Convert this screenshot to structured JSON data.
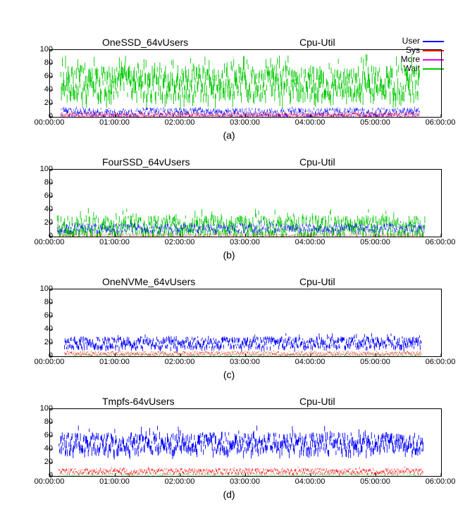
{
  "legend": {
    "items": [
      {
        "label": "User",
        "color": "#0000ff"
      },
      {
        "label": "Sys",
        "color": "#ff0000"
      },
      {
        "label": "More",
        "color": "#ee00ee"
      },
      {
        "label": "Wait",
        "color": "#00c800"
      }
    ]
  },
  "axes": {
    "ylim": [
      0,
      100
    ],
    "yticks": [
      0,
      20,
      40,
      60,
      80,
      100
    ],
    "xlim": [
      0,
      21600
    ],
    "xticks": [
      {
        "v": 0,
        "label": "00:00:00"
      },
      {
        "v": 3600,
        "label": "01:00:00"
      },
      {
        "v": 7200,
        "label": "02:00:00"
      },
      {
        "v": 10800,
        "label": "03:00:00"
      },
      {
        "v": 14400,
        "label": "04:00:00"
      },
      {
        "v": 18000,
        "label": "05:00:00"
      },
      {
        "v": 21600,
        "label": "06:00:00"
      }
    ],
    "plot_bg": "#ffffff",
    "tick_font_size": 11,
    "title_font_size": 14
  },
  "panels": [
    {
      "id": "a",
      "sublabel": "(a)",
      "title_left": "OneSSD_64vUsers",
      "title_right": "Cpu-Util",
      "xstart": 600,
      "xend": 20400,
      "series": [
        {
          "color": "#00c800",
          "base": 55,
          "amp": 30,
          "noise": 22,
          "spikes": 0.06,
          "stroke_w": 0.9,
          "alpha": 1
        },
        {
          "color": "#0000ff",
          "base": 8,
          "amp": 6,
          "noise": 6,
          "spikes": 0.02,
          "stroke_w": 0.7,
          "alpha": 0.9
        },
        {
          "color": "#ff0000",
          "base": 4,
          "amp": 3,
          "noise": 3,
          "spikes": 0.02,
          "stroke_w": 0.6,
          "alpha": 0.9
        },
        {
          "color": "#ee00ee",
          "base": 2,
          "amp": 2,
          "noise": 2,
          "spikes": 0.01,
          "stroke_w": 0.5,
          "alpha": 0.8
        }
      ]
    },
    {
      "id": "b",
      "sublabel": "(b)",
      "title_left": "FourSSD_64vUsers",
      "title_right": "Cpu-Util",
      "xstart": 400,
      "xend": 20700,
      "series": [
        {
          "color": "#00c800",
          "base": 18,
          "amp": 20,
          "noise": 14,
          "spikes": 0.05,
          "stroke_w": 0.9,
          "alpha": 1
        },
        {
          "color": "#0000ff",
          "base": 14,
          "amp": 8,
          "noise": 6,
          "spikes": 0.02,
          "stroke_w": 0.7,
          "alpha": 0.8
        },
        {
          "color": "#ff0000",
          "base": 3,
          "amp": 3,
          "noise": 2,
          "spikes": 0.01,
          "stroke_w": 0.5,
          "alpha": 0.7
        }
      ]
    },
    {
      "id": "c",
      "sublabel": "(c)",
      "title_left": "OneNVMe_64vUsers",
      "title_right": "Cpu-Util",
      "xstart": 800,
      "xend": 20500,
      "series": [
        {
          "color": "#0000ff",
          "base": 22,
          "amp": 10,
          "noise": 8,
          "spikes": 0.03,
          "stroke_w": 0.9,
          "alpha": 1
        },
        {
          "color": "#ff0000",
          "base": 5,
          "amp": 3,
          "noise": 3,
          "spikes": 0.01,
          "stroke_w": 0.6,
          "alpha": 0.9
        },
        {
          "color": "#00c800",
          "base": 2,
          "amp": 2,
          "noise": 2,
          "spikes": 0.01,
          "stroke_w": 0.5,
          "alpha": 0.8
        }
      ]
    },
    {
      "id": "d",
      "sublabel": "(d)",
      "title_left": "Tmpfs-64vUsers",
      "title_right": "Cpu-Util",
      "xstart": 500,
      "xend": 20600,
      "series": [
        {
          "color": "#0000ff",
          "base": 52,
          "amp": 18,
          "noise": 14,
          "spikes": 0.04,
          "stroke_w": 0.9,
          "alpha": 1
        },
        {
          "color": "#ff0000",
          "base": 8,
          "amp": 5,
          "noise": 4,
          "spikes": 0.02,
          "stroke_w": 0.7,
          "alpha": 0.9
        },
        {
          "color": "#00c800",
          "base": 2,
          "amp": 2,
          "noise": 2,
          "spikes": 0.01,
          "stroke_w": 0.5,
          "alpha": 0.7
        }
      ]
    }
  ]
}
